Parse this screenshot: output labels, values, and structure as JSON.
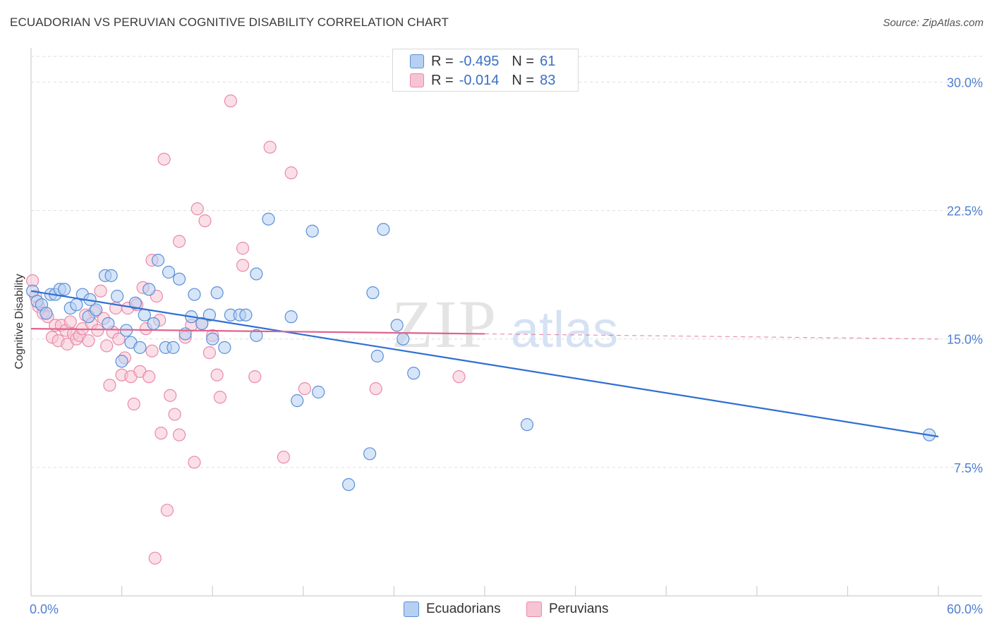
{
  "title": "ECUADORIAN VS PERUVIAN COGNITIVE DISABILITY CORRELATION CHART",
  "source": "Source: ZipAtlas.com",
  "watermark": {
    "zip": "ZIP",
    "atlas": "atlas"
  },
  "legend": {
    "series1": {
      "r_label": "R =",
      "r_value": "-0.495",
      "n_label": "N =",
      "n_value": "61"
    },
    "series2": {
      "r_label": "R =",
      "r_value": "-0.014",
      "n_label": "N =",
      "n_value": "83"
    }
  },
  "bottom_legend": {
    "series1": "Ecuadorians",
    "series2": "Peruvians"
  },
  "colors": {
    "blue_fill": "#b7d0f2",
    "blue_stroke": "#5b8fd6",
    "blue_line": "#2f6fd2",
    "pink_fill": "#f7c4d3",
    "pink_stroke": "#e98aaa",
    "pink_line": "#e0638d",
    "axis_text": "#4f7fd0",
    "grid": "#dddddd"
  },
  "chart_data": {
    "type": "scatter",
    "title": "ECUADORIAN VS PERUVIAN COGNITIVE DISABILITY CORRELATION CHART",
    "xlabel": "",
    "ylabel": "Cognitive Disability",
    "xlim": [
      0,
      60
    ],
    "ylim": [
      0,
      31.5
    ],
    "x_tick_labels": [
      "0.0%",
      "60.0%"
    ],
    "y_ticks": [
      7.5,
      15.0,
      22.5,
      30.0
    ],
    "y_tick_labels": [
      "7.5%",
      "15.0%",
      "22.5%",
      "30.0%"
    ],
    "series": [
      {
        "name": "Ecuadorians",
        "r": -0.495,
        "n": 61,
        "trend": {
          "x0": 0.0,
          "y0": 17.8,
          "x1": 60.0,
          "y1": 9.3
        },
        "points": [
          [
            0.1,
            17.8
          ],
          [
            0.4,
            17.2
          ],
          [
            0.7,
            17.0
          ],
          [
            1.0,
            16.5
          ],
          [
            1.3,
            17.6
          ],
          [
            1.6,
            17.6
          ],
          [
            1.9,
            17.9
          ],
          [
            2.2,
            17.9
          ],
          [
            2.6,
            16.8
          ],
          [
            3.0,
            17.0
          ],
          [
            3.4,
            17.6
          ],
          [
            3.8,
            16.3
          ],
          [
            3.9,
            17.3
          ],
          [
            4.3,
            16.7
          ],
          [
            4.9,
            18.7
          ],
          [
            5.1,
            15.9
          ],
          [
            5.3,
            18.7
          ],
          [
            5.7,
            17.5
          ],
          [
            6.0,
            13.7
          ],
          [
            6.3,
            15.5
          ],
          [
            6.6,
            14.8
          ],
          [
            6.9,
            17.1
          ],
          [
            7.2,
            14.5
          ],
          [
            7.5,
            16.4
          ],
          [
            7.8,
            17.9
          ],
          [
            8.1,
            15.9
          ],
          [
            8.4,
            19.6
          ],
          [
            8.9,
            14.5
          ],
          [
            9.1,
            18.9
          ],
          [
            9.4,
            14.5
          ],
          [
            9.8,
            18.5
          ],
          [
            10.2,
            15.3
          ],
          [
            10.6,
            16.3
          ],
          [
            10.8,
            17.6
          ],
          [
            11.3,
            15.9
          ],
          [
            11.8,
            16.4
          ],
          [
            12.0,
            15.0
          ],
          [
            12.3,
            17.7
          ],
          [
            12.8,
            14.5
          ],
          [
            13.2,
            16.4
          ],
          [
            13.8,
            16.4
          ],
          [
            14.2,
            16.4
          ],
          [
            14.9,
            15.2
          ],
          [
            14.9,
            18.8
          ],
          [
            15.7,
            22.0
          ],
          [
            17.2,
            16.3
          ],
          [
            17.6,
            11.4
          ],
          [
            18.6,
            21.3
          ],
          [
            19.0,
            11.9
          ],
          [
            21.0,
            6.5
          ],
          [
            22.4,
            8.3
          ],
          [
            22.6,
            17.7
          ],
          [
            22.9,
            14.0
          ],
          [
            23.3,
            21.4
          ],
          [
            24.2,
            15.8
          ],
          [
            24.6,
            15.0
          ],
          [
            25.3,
            13.0
          ],
          [
            32.8,
            10.0
          ],
          [
            59.4,
            9.4
          ]
        ]
      },
      {
        "name": "Peruvians",
        "r": -0.014,
        "n": 83,
        "trend": {
          "x0": 0.0,
          "y0": 15.6,
          "x1": 60.0,
          "y1": 15.0,
          "solid_to_x": 30.0
        },
        "points": [
          [
            0.1,
            18.4
          ],
          [
            0.3,
            17.5
          ],
          [
            0.5,
            16.9
          ],
          [
            0.8,
            16.5
          ],
          [
            1.1,
            16.3
          ],
          [
            1.4,
            15.1
          ],
          [
            1.6,
            15.8
          ],
          [
            1.8,
            14.9
          ],
          [
            2.0,
            15.8
          ],
          [
            2.3,
            15.5
          ],
          [
            2.4,
            14.7
          ],
          [
            2.6,
            16.0
          ],
          [
            2.8,
            15.3
          ],
          [
            3.0,
            15.0
          ],
          [
            3.2,
            15.2
          ],
          [
            3.4,
            15.6
          ],
          [
            3.6,
            16.4
          ],
          [
            3.8,
            14.9
          ],
          [
            4.0,
            15.9
          ],
          [
            4.2,
            16.6
          ],
          [
            4.4,
            15.5
          ],
          [
            4.6,
            17.8
          ],
          [
            4.8,
            16.2
          ],
          [
            5.0,
            14.6
          ],
          [
            5.2,
            12.3
          ],
          [
            5.4,
            15.4
          ],
          [
            5.6,
            16.8
          ],
          [
            5.8,
            15.0
          ],
          [
            6.0,
            12.9
          ],
          [
            6.2,
            13.9
          ],
          [
            6.4,
            16.8
          ],
          [
            6.6,
            12.8
          ],
          [
            6.8,
            11.2
          ],
          [
            7.0,
            17.0
          ],
          [
            7.2,
            13.1
          ],
          [
            7.4,
            18.0
          ],
          [
            7.6,
            15.6
          ],
          [
            7.8,
            12.8
          ],
          [
            8.0,
            14.3
          ],
          [
            8.0,
            19.6
          ],
          [
            8.3,
            17.5
          ],
          [
            8.5,
            16.1
          ],
          [
            8.6,
            9.5
          ],
          [
            8.8,
            25.5
          ],
          [
            9.0,
            5.0
          ],
          [
            9.2,
            11.7
          ],
          [
            9.5,
            10.6
          ],
          [
            9.8,
            9.4
          ],
          [
            9.8,
            20.7
          ],
          [
            10.2,
            15.1
          ],
          [
            10.6,
            15.8
          ],
          [
            10.8,
            7.8
          ],
          [
            11.0,
            22.6
          ],
          [
            11.3,
            15.9
          ],
          [
            11.5,
            21.9
          ],
          [
            11.8,
            14.2
          ],
          [
            12.0,
            15.2
          ],
          [
            12.3,
            12.9
          ],
          [
            12.5,
            11.6
          ],
          [
            14.0,
            20.3
          ],
          [
            14.0,
            19.3
          ],
          [
            14.8,
            12.8
          ],
          [
            15.8,
            26.2
          ],
          [
            16.7,
            8.1
          ],
          [
            17.2,
            24.7
          ],
          [
            13.2,
            28.9
          ],
          [
            18.1,
            12.1
          ],
          [
            22.8,
            12.1
          ],
          [
            28.3,
            12.8
          ],
          [
            8.2,
            2.2
          ]
        ]
      }
    ]
  }
}
